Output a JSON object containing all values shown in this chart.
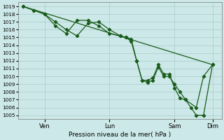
{
  "xlabel": "Pression niveau de la mer( hPa )",
  "bg_color": "#cce8e8",
  "grid_color": "#aacccc",
  "line_color": "#1a5c1a",
  "ylim": [
    1004.5,
    1019.5
  ],
  "xlim": [
    -5,
    220
  ],
  "xtick_positions": [
    24,
    96,
    168,
    210
  ],
  "xtick_labels": [
    "Ven",
    "Lun",
    "Sam",
    "Dim"
  ],
  "series1_x": [
    0,
    210
  ],
  "series1_y": [
    1019,
    1011.5
  ],
  "series2_x": [
    0,
    12,
    24,
    36,
    48,
    60,
    72,
    84,
    96,
    108,
    114,
    120,
    126,
    132,
    138,
    144,
    150,
    156,
    162,
    168,
    174,
    180,
    186,
    192,
    200,
    210
  ],
  "series2_y": [
    1019,
    1018.5,
    1018,
    1017,
    1016,
    1015.2,
    1016.8,
    1017,
    1016,
    1015.2,
    1015,
    1014.8,
    1012,
    1009.5,
    1009.2,
    1009.5,
    1011.2,
    1010,
    1010,
    1009,
    1008,
    1007,
    1006,
    1005,
    1005,
    1011.5
  ],
  "series3_x": [
    0,
    12,
    24,
    36,
    48,
    60,
    72,
    84,
    96,
    108,
    114,
    120,
    126,
    132,
    138,
    144,
    150,
    156,
    162,
    168,
    174,
    180,
    192,
    200,
    210
  ],
  "series3_y": [
    1019,
    1018.5,
    1018,
    1016.5,
    1015.5,
    1017.2,
    1017.2,
    1016.5,
    1015.5,
    1015.2,
    1015,
    1014.5,
    1012,
    1009.5,
    1009.5,
    1009.8,
    1011.5,
    1010.3,
    1010.3,
    1008.5,
    1007.2,
    1007,
    1006,
    1010,
    1011.5
  ]
}
